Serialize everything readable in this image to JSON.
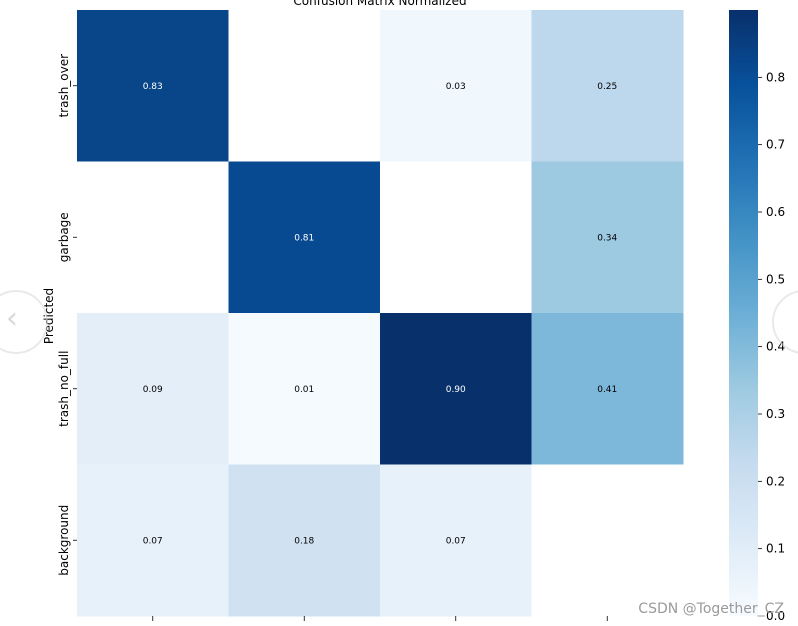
{
  "chart_data": {
    "type": "heatmap",
    "title": "Confusion Matrix Normalized",
    "ylabel": "Predicted",
    "xlabel": "",
    "row_labels": [
      "trash_over",
      "garbage",
      "trash_no_full",
      "background"
    ],
    "values": [
      [
        0.83,
        null,
        0.03,
        0.25
      ],
      [
        null,
        0.81,
        null,
        0.34
      ],
      [
        0.09,
        0.01,
        0.9,
        0.41
      ],
      [
        0.07,
        0.18,
        0.07,
        null
      ]
    ],
    "cell_labels": [
      [
        "0.83",
        "",
        "0.03",
        "0.25"
      ],
      [
        "",
        "0.81",
        "",
        "0.34"
      ],
      [
        "0.09",
        "0.01",
        "0.90",
        "0.41"
      ],
      [
        "0.07",
        "0.18",
        "0.07",
        ""
      ]
    ],
    "colorbar": {
      "range": [
        0.0,
        0.9
      ],
      "ticks": [
        0.0,
        0.1,
        0.2,
        0.3,
        0.4,
        0.5,
        0.6,
        0.7,
        0.8
      ],
      "tick_labels": [
        "0.0",
        "0.1",
        "0.2",
        "0.3",
        "0.4",
        "0.5",
        "0.6",
        "0.7",
        "0.8"
      ],
      "colormap": "Blues"
    },
    "colors": {
      "empty_cell": "#ffffff",
      "text_dark": "#000000",
      "text_light": "#ffffff"
    }
  },
  "watermark": "CSDN @Together_CZ",
  "nav_icons": {
    "left": "chevron-left-icon",
    "right": "chevron-right-icon"
  }
}
